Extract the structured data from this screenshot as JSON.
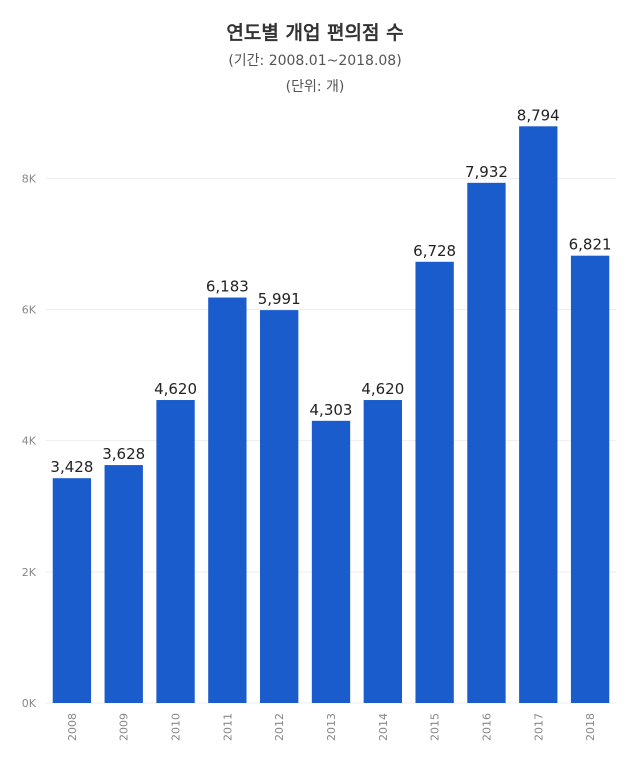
{
  "title": "연도별 개업 편의점 수",
  "subtitle": "(기간: 2008.01~2018.08)",
  "unit": "(단위: 개)",
  "colors": {
    "bar": "#1a5ccc",
    "grid": "#eeeeee"
  },
  "chart_data": {
    "type": "bar",
    "title": "연도별 개업 편의점 수",
    "subtitle": "(기간: 2008.01~2018.08)",
    "categories": [
      "2008",
      "2009",
      "2010",
      "2011",
      "2012",
      "2013",
      "2014",
      "2015",
      "2016",
      "2017",
      "2018"
    ],
    "values": [
      3428,
      3628,
      4620,
      6183,
      5991,
      4303,
      4620,
      6728,
      7932,
      8794,
      6821
    ],
    "value_labels": [
      "3,428",
      "3,628",
      "4,620",
      "6,183",
      "5,991",
      "4,303",
      "4,620",
      "6,728",
      "7,932",
      "8,794",
      "6,821"
    ],
    "yticks": [
      0,
      2000,
      4000,
      6000,
      8000
    ],
    "ytick_labels": [
      "0K",
      "2K",
      "4K",
      "6K",
      "8K"
    ],
    "ylim": [
      0,
      9500
    ],
    "xlabel": "",
    "ylabel": "",
    "grid": true
  }
}
